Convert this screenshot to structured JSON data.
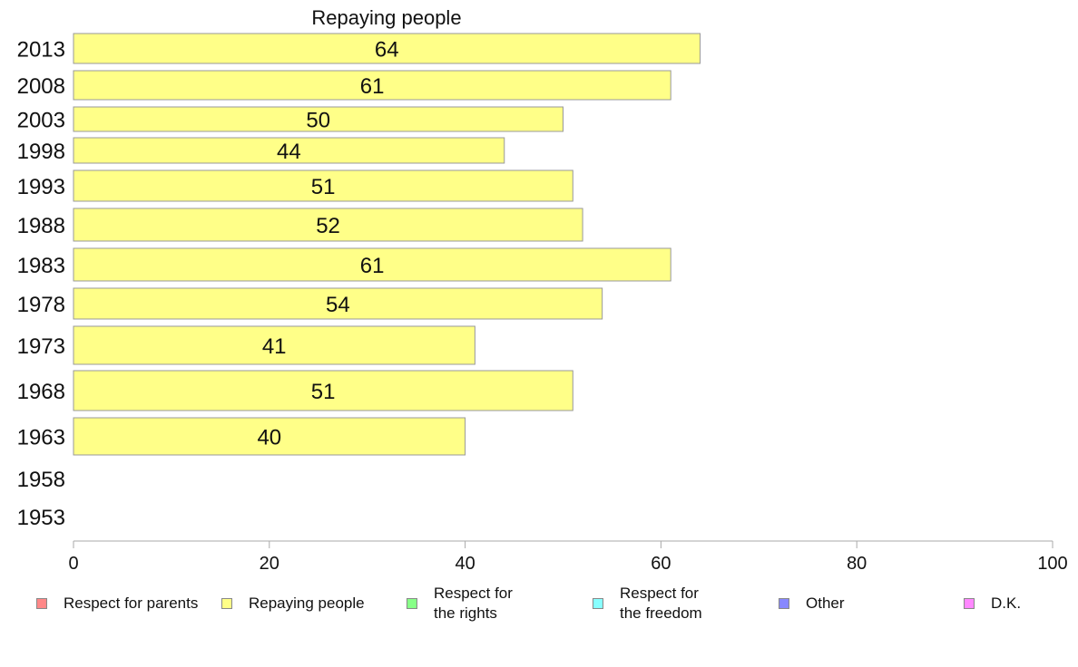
{
  "chart_data": {
    "type": "bar",
    "orientation": "horizontal",
    "title": "Repaying people",
    "categories": [
      "2013",
      "2008",
      "2003",
      "1998",
      "1993",
      "1988",
      "1983",
      "1978",
      "1973",
      "1968",
      "1963",
      "1958",
      "1953"
    ],
    "series": [
      {
        "name": "Repaying people",
        "color": "#ffff88",
        "values": [
          64,
          61,
          50,
          44,
          51,
          52,
          61,
          54,
          41,
          51,
          40,
          null,
          null
        ]
      }
    ],
    "xlim": [
      0,
      100
    ],
    "xticks": [
      "0",
      "20",
      "40",
      "60",
      "80",
      "100"
    ],
    "grid": false,
    "legend_position": "bottom"
  },
  "legend": {
    "items": [
      {
        "label": "Respect for parents",
        "color": "#ff8888"
      },
      {
        "label": "Repaying people",
        "color": "#ffff88"
      },
      {
        "label": "Respect for\nthe rights",
        "color": "#88ff88"
      },
      {
        "label": "Respect for\nthe freedom",
        "color": "#88ffff"
      },
      {
        "label": "Other",
        "color": "#8888ff"
      },
      {
        "label": "D.K.",
        "color": "#ff88ff"
      }
    ]
  }
}
